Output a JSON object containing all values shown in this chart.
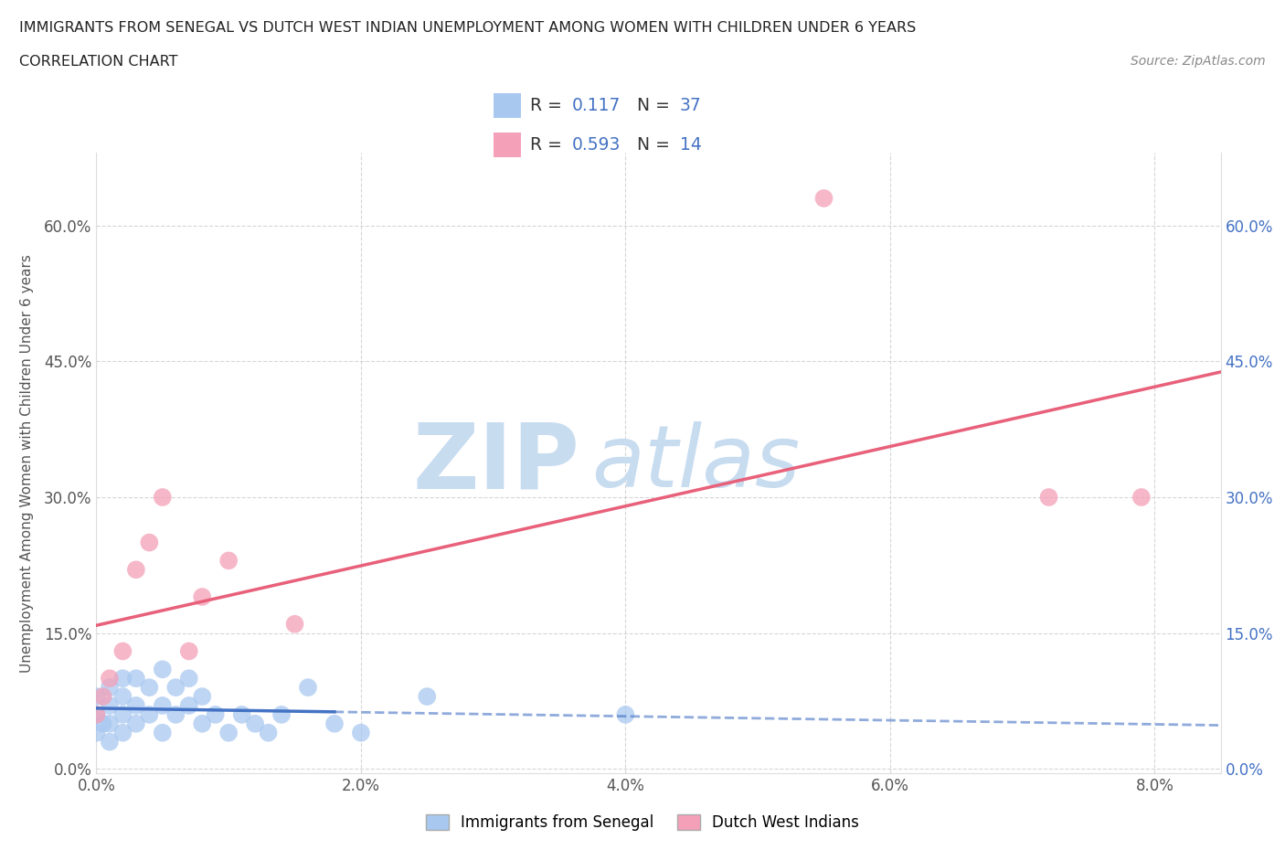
{
  "title": "IMMIGRANTS FROM SENEGAL VS DUTCH WEST INDIAN UNEMPLOYMENT AMONG WOMEN WITH CHILDREN UNDER 6 YEARS",
  "subtitle": "CORRELATION CHART",
  "source": "Source: ZipAtlas.com",
  "ylabel": "Unemployment Among Women with Children Under 6 years",
  "xlim": [
    0.0,
    0.085
  ],
  "ylim": [
    -0.005,
    0.68
  ],
  "x_tick_vals": [
    0.0,
    0.02,
    0.04,
    0.06,
    0.08
  ],
  "x_tick_labels": [
    "0.0%",
    "2.0%",
    "4.0%",
    "6.0%",
    "8.0%"
  ],
  "y_tick_vals": [
    0.0,
    0.15,
    0.3,
    0.45,
    0.6
  ],
  "y_tick_labels": [
    "0.0%",
    "15.0%",
    "30.0%",
    "45.0%",
    "60.0%"
  ],
  "senegal_R": "0.117",
  "senegal_N": "37",
  "dutch_R": "0.593",
  "dutch_N": "14",
  "senegal_color": "#A8C8F0",
  "dutch_color": "#F4A0B8",
  "senegal_line_color": "#4472C4",
  "dutch_line_color": "#E8607A",
  "watermark_zip": "ZIP",
  "watermark_atlas": "atlas",
  "watermark_color": "#C8DCF0",
  "grid_color": "#CCCCCC",
  "background_color": "#FFFFFF",
  "legend_label_1": "Immigrants from Senegal",
  "legend_label_2": "Dutch West Indians",
  "senegal_x": [
    0.0,
    0.0,
    0.0,
    0.0005,
    0.001,
    0.001,
    0.001,
    0.001,
    0.002,
    0.002,
    0.002,
    0.002,
    0.003,
    0.003,
    0.003,
    0.004,
    0.004,
    0.005,
    0.005,
    0.005,
    0.006,
    0.006,
    0.007,
    0.007,
    0.008,
    0.008,
    0.009,
    0.01,
    0.011,
    0.012,
    0.013,
    0.014,
    0.016,
    0.018,
    0.02,
    0.025,
    0.04
  ],
  "senegal_y": [
    0.04,
    0.06,
    0.08,
    0.05,
    0.03,
    0.05,
    0.07,
    0.09,
    0.04,
    0.06,
    0.08,
    0.1,
    0.05,
    0.07,
    0.1,
    0.06,
    0.09,
    0.04,
    0.07,
    0.11,
    0.06,
    0.09,
    0.07,
    0.1,
    0.05,
    0.08,
    0.06,
    0.04,
    0.06,
    0.05,
    0.04,
    0.06,
    0.09,
    0.05,
    0.04,
    0.08,
    0.06
  ],
  "dutch_x": [
    0.0,
    0.0005,
    0.001,
    0.002,
    0.003,
    0.004,
    0.005,
    0.007,
    0.008,
    0.01,
    0.015,
    0.055,
    0.072,
    0.079
  ],
  "dutch_y": [
    0.06,
    0.08,
    0.1,
    0.13,
    0.22,
    0.25,
    0.3,
    0.13,
    0.19,
    0.23,
    0.16,
    0.63,
    0.3,
    0.3
  ]
}
